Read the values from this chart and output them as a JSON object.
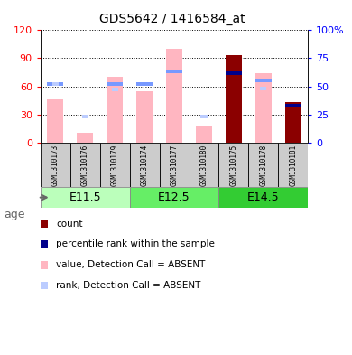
{
  "title": "GDS5642 / 1416584_at",
  "samples": [
    "GSM1310173",
    "GSM1310176",
    "GSM1310179",
    "GSM1310174",
    "GSM1310177",
    "GSM1310180",
    "GSM1310175",
    "GSM1310178",
    "GSM1310181"
  ],
  "age_groups": [
    {
      "label": "E11.5",
      "start": 0,
      "end": 3
    },
    {
      "label": "E12.5",
      "start": 3,
      "end": 6
    },
    {
      "label": "E14.5",
      "start": 6,
      "end": 9
    }
  ],
  "value_absent": [
    46,
    10,
    70,
    55,
    100,
    17,
    0,
    74,
    0
  ],
  "rank_absent_top": [
    52,
    0,
    52,
    52,
    63,
    0,
    0,
    55,
    0
  ],
  "rank_absent_small": [
    52,
    23,
    47,
    0,
    0,
    23,
    0,
    48,
    33
  ],
  "count_value": [
    0,
    0,
    0,
    0,
    0,
    0,
    93,
    0,
    43
  ],
  "percentile_rank": [
    0,
    0,
    0,
    0,
    0,
    0,
    62,
    0,
    33
  ],
  "ylim_left": [
    0,
    120
  ],
  "left_ticks": [
    0,
    30,
    60,
    90,
    120
  ],
  "right_ticks": [
    0,
    25,
    50,
    75,
    100
  ],
  "right_tick_labels": [
    "0",
    "25",
    "50",
    "75",
    "100%"
  ],
  "color_count": "#8B0000",
  "color_percentile": "#00008B",
  "color_value_absent": "#FFB6C1",
  "color_rank_absent_top": "#7799FF",
  "color_rank_absent_small": "#BBCCFF",
  "color_sample_bg": "#cccccc",
  "age_colors": [
    "#bbffbb",
    "#66ee66",
    "#33cc33"
  ],
  "age_label_color": "#666666"
}
